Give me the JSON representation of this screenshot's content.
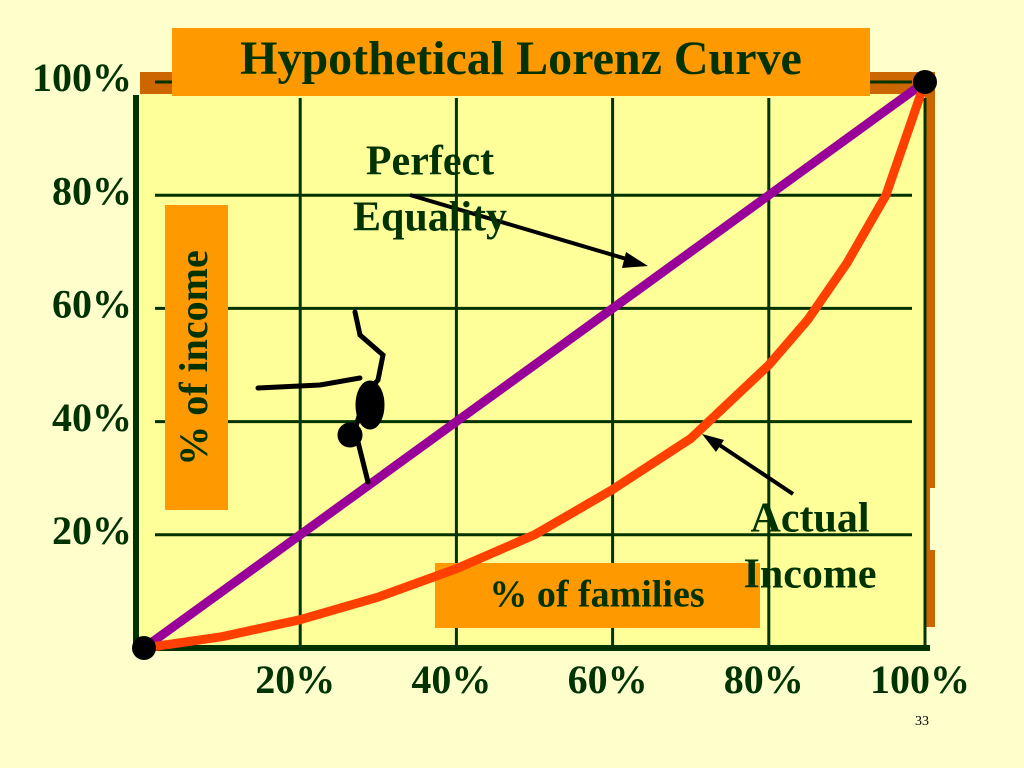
{
  "chart_data": {
    "type": "line",
    "title": "Hypothetical Lorenz Curve",
    "x_label": "% of families",
    "y_label": "% of income",
    "series": [
      {
        "name": "Perfect Equality",
        "color": "#990099",
        "x": [
          0,
          100
        ],
        "values": [
          0,
          100
        ]
      },
      {
        "name": "Actual Income",
        "color": "#ff4000",
        "x": [
          0,
          10,
          20,
          30,
          40,
          50,
          60,
          70,
          80,
          85,
          90,
          95,
          100
        ],
        "values": [
          0,
          2,
          5,
          9,
          14,
          20,
          28,
          37,
          50,
          58,
          68,
          80,
          100
        ]
      }
    ],
    "annotations": [
      {
        "lines": [
          "Perfect",
          "Equality"
        ]
      },
      {
        "lines": [
          "Actual",
          "Income"
        ]
      }
    ],
    "xlim": [
      0,
      100
    ],
    "ylim": [
      0,
      100
    ],
    "xticks": [
      {
        "value": 20,
        "label": "20%"
      },
      {
        "value": 40,
        "label": "40%"
      },
      {
        "value": 60,
        "label": "60%"
      },
      {
        "value": 80,
        "label": "80%"
      },
      {
        "value": 100,
        "label": "100%"
      }
    ],
    "yticks": [
      {
        "value": 20,
        "label": "20%"
      },
      {
        "value": 40,
        "label": "40%"
      },
      {
        "value": 60,
        "label": "60%"
      },
      {
        "value": 80,
        "label": "80%"
      },
      {
        "value": 100,
        "label": "100%"
      }
    ],
    "grid": true,
    "page_number": "33"
  }
}
